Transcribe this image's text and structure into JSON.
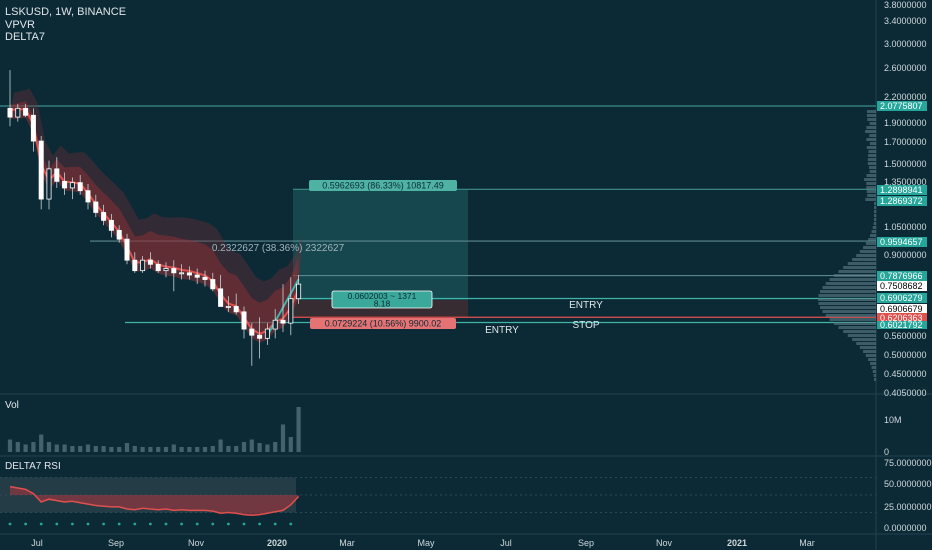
{
  "header": {
    "symbol_line": "LSKUSD, 1W, BINANCE",
    "indicator_1": "VPVR",
    "indicator_2": "DELTA7"
  },
  "price_axis": {
    "ticks": [
      "3.8000000",
      "3.4000000",
      "3.0000000",
      "2.6000000",
      "2.2000000",
      "1.9000000",
      "1.7000000",
      "1.5000000",
      "1.3500000",
      "1.0500000",
      "0.9000000",
      "0.5600000",
      "0.5000000",
      "0.4500000",
      "0.4050000"
    ],
    "tags": [
      {
        "label": "2.0775807",
        "bg": "#26a69a",
        "fg": "#ffffff"
      },
      {
        "label": "1.2898941",
        "bg": "#26a69a",
        "fg": "#ffffff"
      },
      {
        "label": "1.2869372",
        "bg": "#26a69a",
        "fg": "#ffffff"
      },
      {
        "label": "0.9594657",
        "bg": "#26a69a",
        "fg": "#ffffff"
      },
      {
        "label": "0.7876966",
        "bg": "#26a69a",
        "fg": "#ffffff"
      },
      {
        "label": "0.7508682",
        "bg": "#ffffff",
        "fg": "#000000"
      },
      {
        "label": "0.6906279",
        "bg": "#26a69a",
        "fg": "#ffffff"
      },
      {
        "label": "0.6906679",
        "bg": "#ffffff",
        "fg": "#000000"
      },
      {
        "label": "0.6206363",
        "bg": "#e0504d",
        "fg": "#ffffff"
      },
      {
        "label": "0.6021792",
        "bg": "#26a69a",
        "fg": "#ffffff"
      }
    ]
  },
  "annotations": {
    "target_box": "0.5962693 (86.33%) 10817.49",
    "measure_label": "0.2322627 (38.36%) 2322627",
    "entry_box_line1": "0.0602003 ~ 1371",
    "entry_box_line2": "8.18",
    "stop_box": "0.0729224 (10.56%) 9900.02",
    "entry_text_1": "ENTRY",
    "entry_text_2": "ENTRY",
    "stop_text": "STOP"
  },
  "volume_pane": {
    "title": "Vol",
    "ticks": [
      "10M",
      "0"
    ]
  },
  "rsi_pane": {
    "title": "DELTA7 RSI",
    "ticks": [
      "75.0000000",
      "50.0000000",
      "25.0000000",
      "0.0000000"
    ]
  },
  "time_axis": {
    "labels": [
      "Jul",
      "Sep",
      "Nov",
      "2020",
      "Mar",
      "May",
      "Jul",
      "Sep",
      "Nov",
      "2021",
      "Mar"
    ]
  },
  "colors": {
    "background": "#0c2a35",
    "bull": "#ffffff",
    "bear": "#ffffff",
    "accent_teal": "#26a69a",
    "accent_red": "#e0504d",
    "cloud_red": "#c0392b"
  },
  "chart_data": {
    "type": "candlestick",
    "candles": [
      {
        "o": 2.05,
        "h": 2.55,
        "l": 1.85,
        "c": 1.95
      },
      {
        "o": 1.95,
        "h": 2.1,
        "l": 1.9,
        "c": 2.05
      },
      {
        "o": 2.05,
        "h": 2.1,
        "l": 1.95,
        "c": 1.97
      },
      {
        "o": 1.97,
        "h": 2.05,
        "l": 1.6,
        "c": 1.7
      },
      {
        "o": 1.7,
        "h": 1.75,
        "l": 1.15,
        "c": 1.22
      },
      {
        "o": 1.22,
        "h": 1.52,
        "l": 1.15,
        "c": 1.45
      },
      {
        "o": 1.45,
        "h": 1.55,
        "l": 1.3,
        "c": 1.35
      },
      {
        "o": 1.35,
        "h": 1.42,
        "l": 1.25,
        "c": 1.3
      },
      {
        "o": 1.3,
        "h": 1.38,
        "l": 1.22,
        "c": 1.34
      },
      {
        "o": 1.34,
        "h": 1.4,
        "l": 1.25,
        "c": 1.28
      },
      {
        "o": 1.28,
        "h": 1.33,
        "l": 1.15,
        "c": 1.2
      },
      {
        "o": 1.2,
        "h": 1.25,
        "l": 1.1,
        "c": 1.13
      },
      {
        "o": 1.13,
        "h": 1.18,
        "l": 1.05,
        "c": 1.08
      },
      {
        "o": 1.08,
        "h": 1.12,
        "l": 0.98,
        "c": 1.02
      },
      {
        "o": 1.02,
        "h": 1.05,
        "l": 0.95,
        "c": 0.97
      },
      {
        "o": 0.97,
        "h": 1.0,
        "l": 0.84,
        "c": 0.86
      },
      {
        "o": 0.86,
        "h": 0.9,
        "l": 0.8,
        "c": 0.81
      },
      {
        "o": 0.81,
        "h": 0.88,
        "l": 0.8,
        "c": 0.86
      },
      {
        "o": 0.86,
        "h": 0.9,
        "l": 0.82,
        "c": 0.84
      },
      {
        "o": 0.84,
        "h": 0.86,
        "l": 0.8,
        "c": 0.81
      },
      {
        "o": 0.81,
        "h": 0.85,
        "l": 0.78,
        "c": 0.82
      },
      {
        "o": 0.82,
        "h": 0.86,
        "l": 0.72,
        "c": 0.8
      },
      {
        "o": 0.8,
        "h": 0.84,
        "l": 0.77,
        "c": 0.8
      },
      {
        "o": 0.8,
        "h": 0.83,
        "l": 0.77,
        "c": 0.79
      },
      {
        "o": 0.79,
        "h": 0.82,
        "l": 0.75,
        "c": 0.78
      },
      {
        "o": 0.78,
        "h": 0.81,
        "l": 0.74,
        "c": 0.77
      },
      {
        "o": 0.77,
        "h": 0.8,
        "l": 0.72,
        "c": 0.73
      },
      {
        "o": 0.73,
        "h": 0.79,
        "l": 0.66,
        "c": 0.66
      },
      {
        "o": 0.66,
        "h": 0.7,
        "l": 0.64,
        "c": 0.66
      },
      {
        "o": 0.66,
        "h": 0.71,
        "l": 0.63,
        "c": 0.64
      },
      {
        "o": 0.64,
        "h": 0.66,
        "l": 0.55,
        "c": 0.58
      },
      {
        "o": 0.58,
        "h": 0.6,
        "l": 0.47,
        "c": 0.56
      },
      {
        "o": 0.56,
        "h": 0.62,
        "l": 0.49,
        "c": 0.55
      },
      {
        "o": 0.55,
        "h": 0.6,
        "l": 0.53,
        "c": 0.58
      },
      {
        "o": 0.58,
        "h": 0.65,
        "l": 0.55,
        "c": 0.61
      },
      {
        "o": 0.61,
        "h": 0.75,
        "l": 0.57,
        "c": 0.6
      },
      {
        "o": 0.6,
        "h": 0.78,
        "l": 0.56,
        "c": 0.69
      },
      {
        "o": 0.69,
        "h": 0.79,
        "l": 0.67,
        "c": 0.75
      }
    ],
    "horizontal_levels": [
      2.0775807,
      1.2898941,
      0.9594657,
      0.7876966,
      0.6906279,
      0.6206363,
      0.6021792
    ],
    "volume_relative": [
      0.25,
      0.2,
      0.15,
      0.2,
      0.35,
      0.2,
      0.15,
      0.15,
      0.12,
      0.12,
      0.15,
      0.12,
      0.12,
      0.1,
      0.1,
      0.18,
      0.12,
      0.1,
      0.1,
      0.1,
      0.1,
      0.15,
      0.1,
      0.1,
      0.1,
      0.1,
      0.12,
      0.25,
      0.12,
      0.12,
      0.2,
      0.25,
      0.18,
      0.15,
      0.2,
      0.55,
      0.3,
      0.9
    ],
    "rsi_values": [
      62,
      60,
      58,
      52,
      40,
      44,
      42,
      40,
      41,
      39,
      37,
      35,
      34,
      33,
      33,
      30,
      29,
      31,
      30,
      29,
      30,
      28,
      29,
      28,
      28,
      28,
      27,
      24,
      25,
      24,
      22,
      21,
      22,
      24,
      26,
      28,
      36,
      48
    ]
  }
}
